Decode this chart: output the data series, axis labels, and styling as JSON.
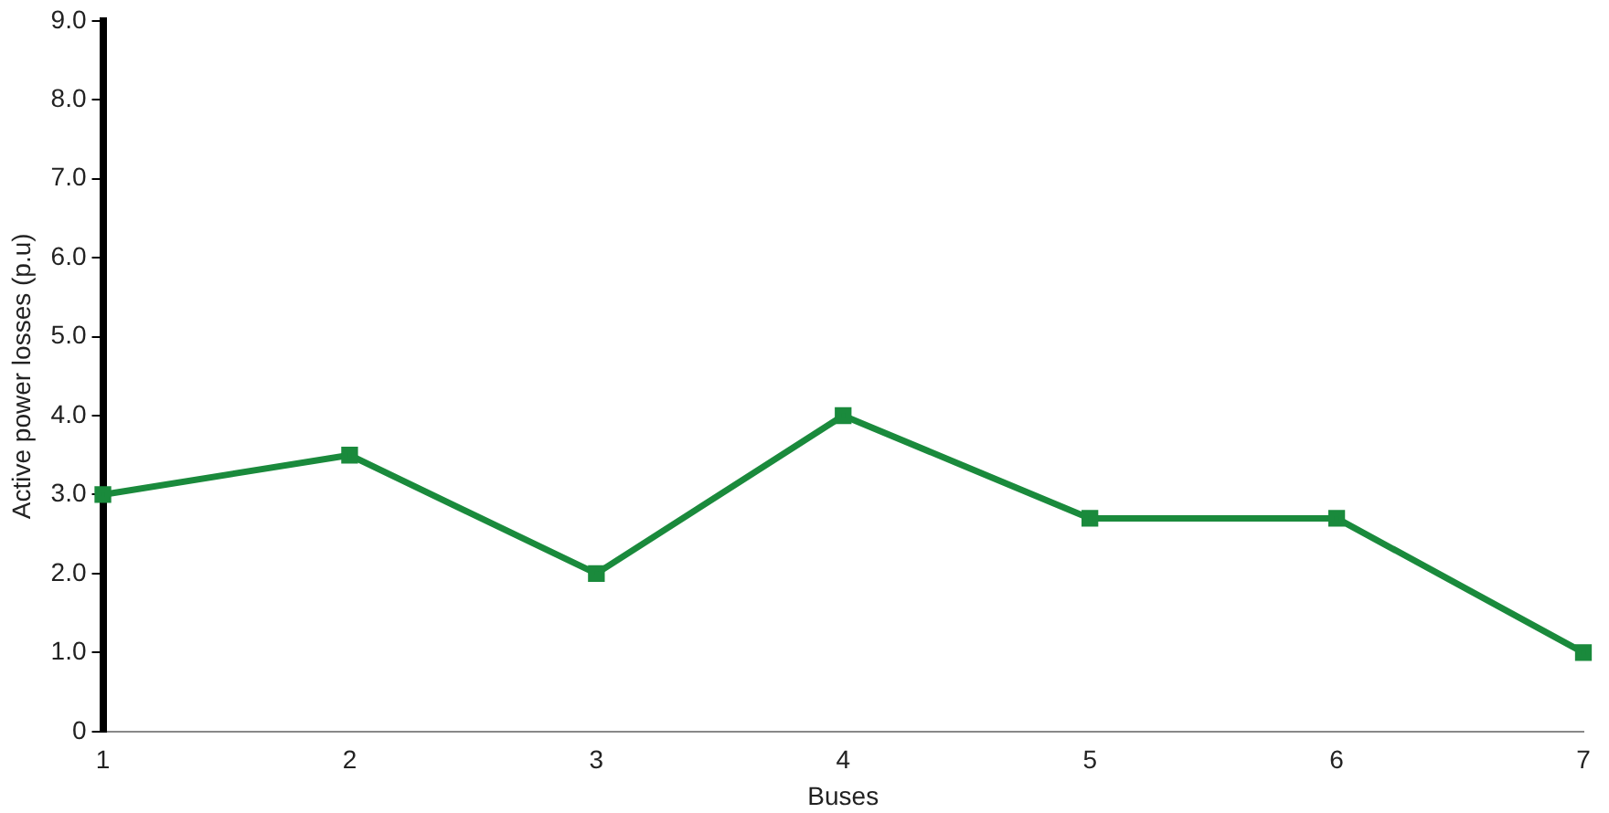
{
  "chart_data": {
    "type": "line",
    "xlabel": "Buses",
    "ylabel": "Active power losses (p.u)",
    "x": [
      1,
      2,
      3,
      4,
      5,
      6,
      7
    ],
    "series": [
      {
        "color": "#1a8a3c",
        "values": [
          3.0,
          3.5,
          2.0,
          4.0,
          2.7,
          2.7,
          1.0
        ]
      }
    ],
    "xlim": [
      1,
      7
    ],
    "xticks": [
      1,
      2,
      3,
      4,
      5,
      6,
      7
    ],
    "ylim": [
      0,
      9
    ],
    "yticks": [
      0,
      {
        "value": 1,
        "label": "1.0"
      },
      {
        "value": 2,
        "label": "2.0"
      },
      {
        "value": 3,
        "label": "3.0"
      },
      {
        "value": 4,
        "label": "4.0"
      },
      {
        "value": 5,
        "label": "5.0"
      },
      {
        "value": 6,
        "label": "6.0"
      },
      {
        "value": 7,
        "label": "7.0"
      },
      {
        "value": 8,
        "label": "8.0"
      },
      {
        "value": 9,
        "label": "9.0"
      }
    ],
    "grid": false,
    "legend": false,
    "marker": "square",
    "line_style": "solid"
  }
}
